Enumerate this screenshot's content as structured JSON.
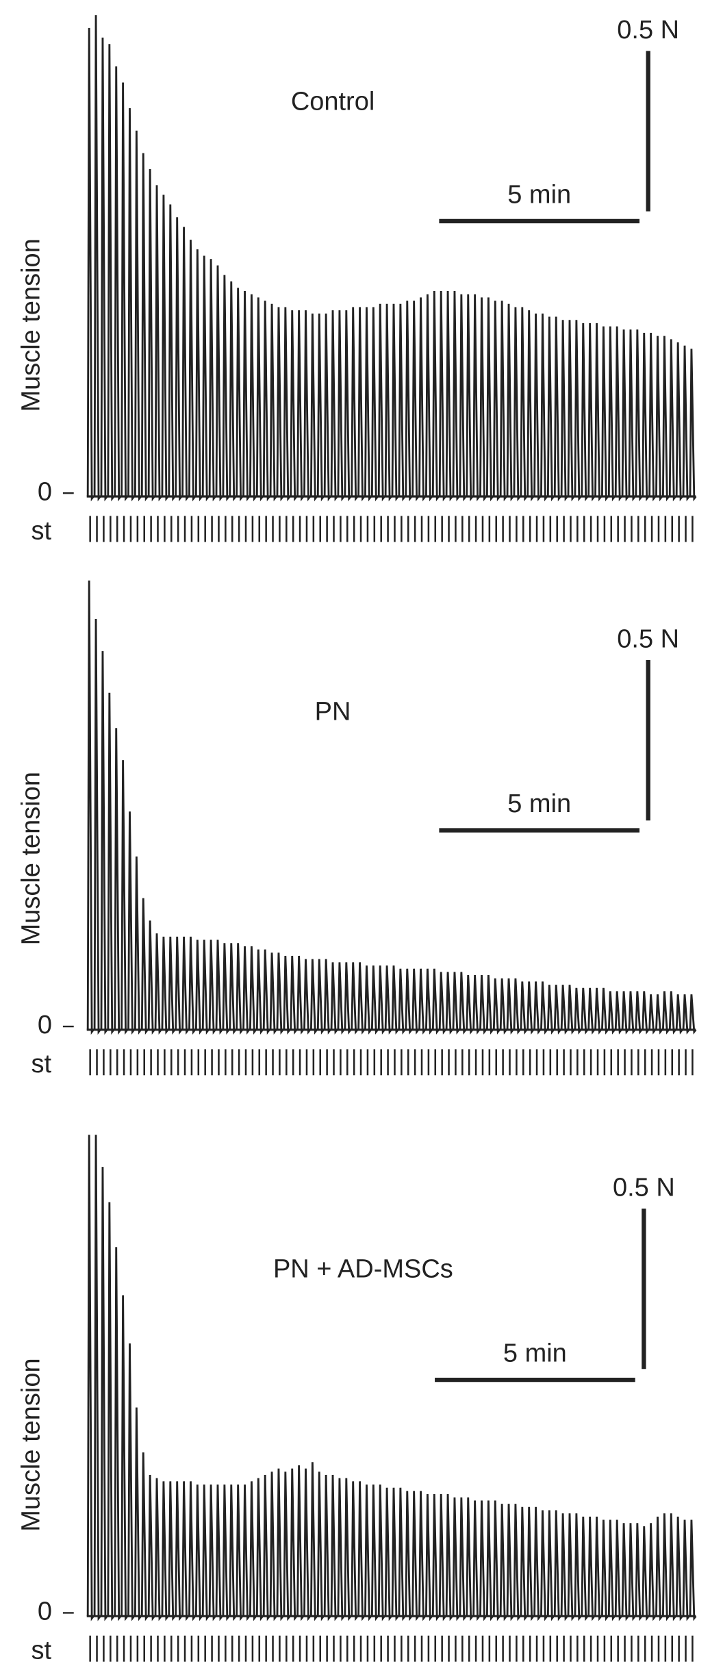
{
  "chart_data": [
    {
      "type": "line",
      "title": "Control",
      "ylabel": "Muscle tension",
      "stim_label": "st",
      "color": "#222222",
      "xlim": [
        0,
        15.2
      ],
      "ylim": [
        0,
        1.5
      ],
      "yticks": [
        0
      ],
      "scale_bars": {
        "y": {
          "value": 0.5,
          "label": "0.5 N"
        },
        "x": {
          "value": 5,
          "label": "5 min"
        }
      },
      "values": [
        1.45,
        1.49,
        1.42,
        1.4,
        1.33,
        1.28,
        1.2,
        1.13,
        1.06,
        1.01,
        0.96,
        0.93,
        0.9,
        0.86,
        0.83,
        0.79,
        0.76,
        0.74,
        0.73,
        0.71,
        0.68,
        0.66,
        0.64,
        0.63,
        0.62,
        0.61,
        0.6,
        0.59,
        0.58,
        0.58,
        0.57,
        0.57,
        0.57,
        0.56,
        0.56,
        0.56,
        0.57,
        0.57,
        0.57,
        0.58,
        0.58,
        0.58,
        0.58,
        0.59,
        0.59,
        0.59,
        0.59,
        0.6,
        0.6,
        0.61,
        0.62,
        0.63,
        0.63,
        0.63,
        0.63,
        0.62,
        0.62,
        0.62,
        0.61,
        0.61,
        0.6,
        0.6,
        0.59,
        0.58,
        0.58,
        0.57,
        0.56,
        0.56,
        0.55,
        0.55,
        0.54,
        0.54,
        0.54,
        0.53,
        0.53,
        0.53,
        0.52,
        0.52,
        0.52,
        0.51,
        0.51,
        0.51,
        0.5,
        0.5,
        0.49,
        0.49,
        0.48,
        0.47,
        0.46,
        0.45
      ]
    },
    {
      "type": "line",
      "title": "PN",
      "ylabel": "Muscle tension",
      "stim_label": "st",
      "color": "#222222",
      "xlim": [
        0,
        15.2
      ],
      "ylim": [
        0,
        1.5
      ],
      "yticks": [
        0
      ],
      "scale_bars": {
        "y": {
          "value": 0.5,
          "label": "0.5 N"
        },
        "x": {
          "value": 5,
          "label": "5 min"
        }
      },
      "values": [
        1.39,
        1.27,
        1.17,
        1.04,
        0.93,
        0.83,
        0.67,
        0.53,
        0.4,
        0.33,
        0.29,
        0.28,
        0.28,
        0.28,
        0.28,
        0.28,
        0.27,
        0.27,
        0.27,
        0.27,
        0.26,
        0.26,
        0.26,
        0.25,
        0.25,
        0.24,
        0.24,
        0.23,
        0.23,
        0.22,
        0.22,
        0.22,
        0.21,
        0.21,
        0.21,
        0.21,
        0.2,
        0.2,
        0.2,
        0.2,
        0.2,
        0.19,
        0.19,
        0.19,
        0.19,
        0.19,
        0.18,
        0.18,
        0.18,
        0.18,
        0.18,
        0.18,
        0.17,
        0.17,
        0.17,
        0.17,
        0.16,
        0.16,
        0.16,
        0.16,
        0.15,
        0.15,
        0.15,
        0.15,
        0.14,
        0.14,
        0.14,
        0.14,
        0.13,
        0.13,
        0.13,
        0.13,
        0.12,
        0.12,
        0.12,
        0.12,
        0.12,
        0.11,
        0.11,
        0.11,
        0.11,
        0.11,
        0.11,
        0.1,
        0.1,
        0.11,
        0.11,
        0.1,
        0.1,
        0.1
      ]
    },
    {
      "type": "line",
      "title": "PN + AD-MSCs",
      "ylabel": "Muscle tension",
      "stim_label": "st",
      "color": "#222222",
      "xlim": [
        0,
        15.2
      ],
      "ylim": [
        0,
        1.5
      ],
      "yticks": [
        0
      ],
      "scale_bars": {
        "y": {
          "value": 0.5,
          "label": "0.5 N"
        },
        "x": {
          "value": 5,
          "label": "5 min"
        }
      },
      "values": [
        1.49,
        1.49,
        1.39,
        1.28,
        1.14,
        0.99,
        0.84,
        0.64,
        0.5,
        0.43,
        0.42,
        0.41,
        0.41,
        0.41,
        0.41,
        0.41,
        0.4,
        0.4,
        0.4,
        0.4,
        0.4,
        0.4,
        0.4,
        0.4,
        0.41,
        0.42,
        0.43,
        0.44,
        0.45,
        0.44,
        0.45,
        0.46,
        0.45,
        0.47,
        0.44,
        0.43,
        0.43,
        0.42,
        0.42,
        0.41,
        0.41,
        0.4,
        0.4,
        0.4,
        0.39,
        0.39,
        0.39,
        0.38,
        0.38,
        0.38,
        0.37,
        0.37,
        0.37,
        0.37,
        0.36,
        0.36,
        0.36,
        0.35,
        0.35,
        0.35,
        0.35,
        0.34,
        0.34,
        0.34,
        0.33,
        0.33,
        0.33,
        0.32,
        0.32,
        0.32,
        0.31,
        0.31,
        0.31,
        0.3,
        0.3,
        0.3,
        0.29,
        0.29,
        0.29,
        0.28,
        0.28,
        0.28,
        0.27,
        0.28,
        0.3,
        0.31,
        0.31,
        0.3,
        0.29,
        0.29
      ]
    }
  ]
}
